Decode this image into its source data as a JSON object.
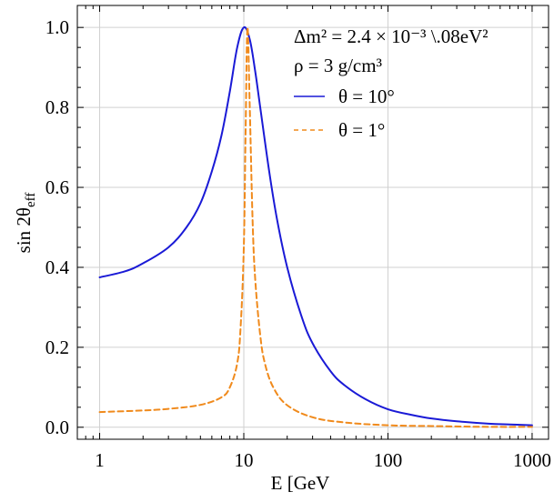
{
  "chart_data": {
    "type": "line",
    "xscale": "log",
    "xlim": [
      0.7,
      1300
    ],
    "ylim": [
      -0.03,
      1.055
    ],
    "grid": true,
    "xlabel": "E [GeV",
    "ylabel": "sin 2θ",
    "ylabel_sub": "eff",
    "x_ticks": [
      1,
      10,
      100,
      1000
    ],
    "x_tick_labels": [
      "1",
      "10",
      "100",
      "1000"
    ],
    "y_ticks": [
      0.0,
      0.2,
      0.4,
      0.6,
      0.8,
      1.0
    ],
    "y_tick_labels": [
      "0.0",
      "0.2",
      "0.4",
      "0.6",
      "0.8",
      "1.0"
    ],
    "legend_placement": "top-right",
    "annotations": [
      {
        "label": "Δm² = 2.4 × 10⁻³ \\.08eV²"
      },
      {
        "label": "ρ = 3 g/cm³"
      }
    ],
    "series": [
      {
        "name": "θ = 10°",
        "color": "#1a1ad6",
        "dash": "solid",
        "x": [
          1,
          1.5,
          2,
          3,
          4,
          5,
          6,
          7,
          8,
          9,
          10,
          11,
          12,
          13,
          15,
          17,
          20,
          25,
          30,
          40,
          50,
          70,
          100,
          150,
          200,
          300,
          500,
          700,
          1000
        ],
        "y": [
          0.375,
          0.39,
          0.41,
          0.45,
          0.5,
          0.56,
          0.64,
          0.73,
          0.84,
          0.95,
          1.0,
          0.97,
          0.89,
          0.8,
          0.64,
          0.52,
          0.4,
          0.28,
          0.21,
          0.14,
          0.105,
          0.07,
          0.045,
          0.03,
          0.022,
          0.015,
          0.009,
          0.007,
          0.005
        ]
      },
      {
        "name": "θ = 1°",
        "color": "#f08a1c",
        "dash": "dashed",
        "x": [
          1,
          2,
          3,
          5,
          7,
          8,
          9,
          9.5,
          10,
          10.3,
          10.6,
          11,
          11.5,
          12,
          13,
          14,
          16,
          20,
          30,
          50,
          100,
          200,
          500,
          1000
        ],
        "y": [
          0.038,
          0.042,
          0.046,
          0.056,
          0.075,
          0.1,
          0.16,
          0.25,
          0.45,
          0.75,
          1.0,
          0.8,
          0.52,
          0.37,
          0.23,
          0.16,
          0.1,
          0.055,
          0.025,
          0.012,
          0.005,
          0.003,
          0.001,
          0.001
        ]
      }
    ]
  }
}
